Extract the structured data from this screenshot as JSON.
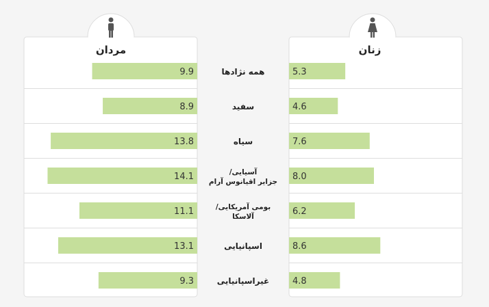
{
  "chart_data": [
    {
      "type": "bar",
      "title": "مردان",
      "categories": [
        "همه نژادها",
        "سفید",
        "سیاه",
        "آسیایی/ جزایر اقیانوس آرام",
        "بومی آمریکایی/ آلاسکا",
        "اسپانیایی",
        "غیراسپانیایی"
      ],
      "values": [
        9.9,
        8.9,
        13.8,
        14.1,
        11.1,
        13.1,
        9.3
      ],
      "direction": "leftward",
      "icon": "male-figure-icon",
      "color": "#c5df9b"
    },
    {
      "type": "bar",
      "title": "زنان",
      "categories": [
        "همه نژادها",
        "سفید",
        "سیاه",
        "آسیایی/ جزایر اقیانوس آرام",
        "بومی آمریکایی/ آلاسکا",
        "اسپانیایی",
        "غیراسپانیایی"
      ],
      "values": [
        5.3,
        4.6,
        7.6,
        8.0,
        6.2,
        8.6,
        4.8
      ],
      "direction": "rightward",
      "icon": "female-figure-icon",
      "color": "#c5df9b"
    }
  ],
  "labels": {
    "men_title": "مردان",
    "women_title": "زنان",
    "categories": [
      [
        "همه نژادها"
      ],
      [
        "سفید"
      ],
      [
        "سیاه"
      ],
      [
        "آسیایی/",
        "جزایر اقیانوس آرام"
      ],
      [
        "بومی آمریکایی/",
        "آلاسکا"
      ],
      [
        "اسپانیایی"
      ],
      [
        "غیراسپانیایی"
      ]
    ]
  },
  "colors": {
    "bar": "#c5df9b",
    "panel": "#ffffff",
    "border": "#dddddd",
    "background": "#f5f5f5",
    "icon": "#555555"
  }
}
